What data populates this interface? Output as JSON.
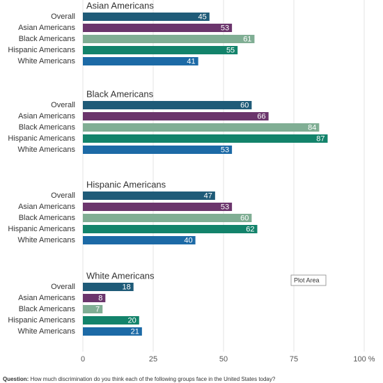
{
  "chart_data": {
    "type": "bar",
    "orientation": "horizontal",
    "categories": [
      "Overall",
      "Asian Americans",
      "Black Americans",
      "Hispanic Americans",
      "White Americans"
    ],
    "colors": [
      "#1f5b78",
      "#6b356c",
      "#80ae94",
      "#13836b",
      "#1c6aa6"
    ],
    "panels": [
      {
        "title": "Asian Americans",
        "values": [
          45,
          53,
          61,
          55,
          41
        ]
      },
      {
        "title": "Black Americans",
        "values": [
          60,
          66,
          84,
          87,
          53
        ]
      },
      {
        "title": "Hispanic Americans",
        "values": [
          47,
          53,
          60,
          62,
          40
        ]
      },
      {
        "title": "White Americans",
        "values": [
          18,
          8,
          7,
          20,
          21
        ]
      }
    ],
    "xlim": [
      0,
      100
    ],
    "xticks": [
      0,
      25,
      50,
      75,
      {
        "value": 100,
        "label": "100 %"
      }
    ],
    "grid": true,
    "tooltip": "Plot Area",
    "footnote": {
      "label": "Question:",
      "text": "How much discrimination do you think each of the following groups face in the United States today?"
    }
  }
}
